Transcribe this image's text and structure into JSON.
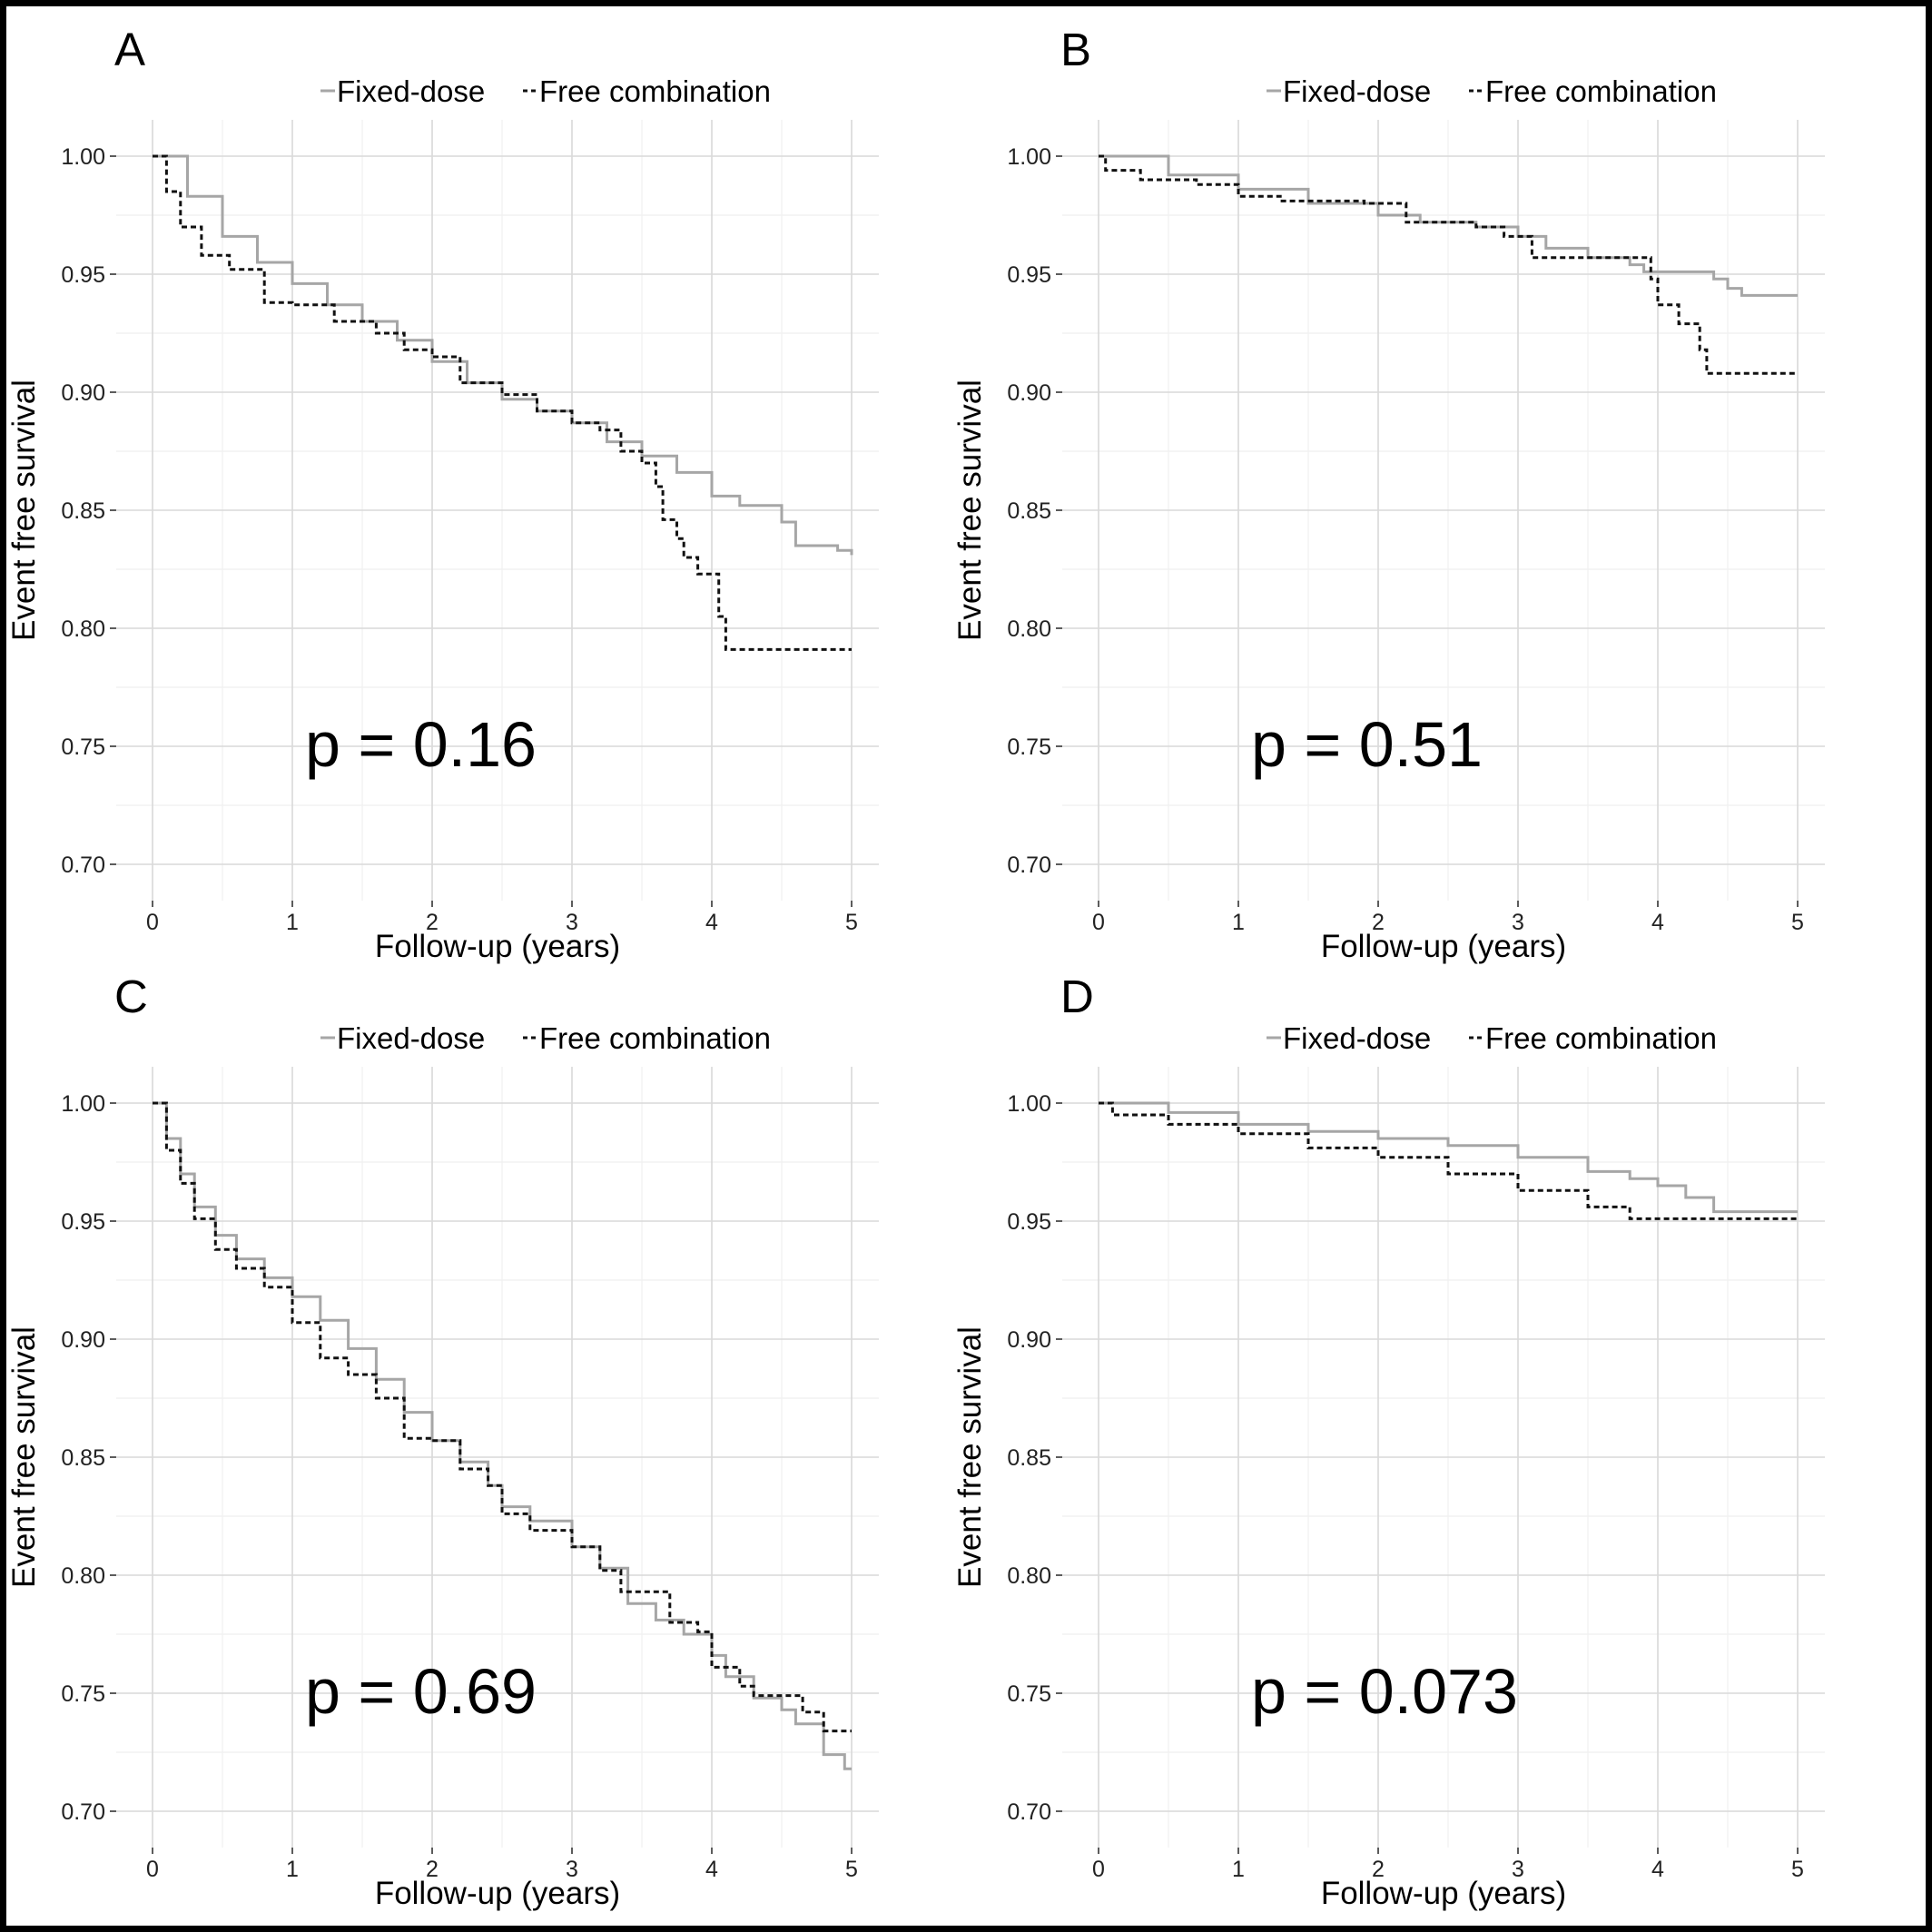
{
  "figure": {
    "colors": {
      "fixed_dose": "#a6a6a6",
      "free_combination": "#111111"
    },
    "line_styles": {
      "fixed_dose": "solid",
      "free_combination": "dashed"
    }
  },
  "chart_data": [
    {
      "type": "line",
      "step": true,
      "panel": "A",
      "pvalue": "p = 0.16",
      "xlabel": "Follow-up (years)",
      "ylabel": "Event free survival",
      "xlim": [
        0,
        5
      ],
      "ylim": [
        0.7,
        1.0
      ],
      "xticks": [
        "0",
        "1",
        "2",
        "3",
        "4",
        "5"
      ],
      "yticks": [
        "0.70",
        "0.75",
        "0.80",
        "0.85",
        "0.90",
        "0.95",
        "1.00"
      ],
      "grid": true,
      "legend_position": "top",
      "series": [
        {
          "name": "Fixed-dose",
          "points": [
            [
              0,
              1.0
            ],
            [
              0.25,
              0.983
            ],
            [
              0.5,
              0.966
            ],
            [
              0.75,
              0.955
            ],
            [
              1.0,
              0.946
            ],
            [
              1.25,
              0.937
            ],
            [
              1.5,
              0.93
            ],
            [
              1.75,
              0.922
            ],
            [
              2.0,
              0.913
            ],
            [
              2.25,
              0.904
            ],
            [
              2.5,
              0.897
            ],
            [
              2.75,
              0.892
            ],
            [
              3.0,
              0.887
            ],
            [
              3.25,
              0.879
            ],
            [
              3.5,
              0.873
            ],
            [
              3.75,
              0.866
            ],
            [
              4.0,
              0.856
            ],
            [
              4.2,
              0.852
            ],
            [
              4.5,
              0.845
            ],
            [
              4.6,
              0.835
            ],
            [
              4.9,
              0.833
            ],
            [
              5.0,
              0.831
            ]
          ]
        },
        {
          "name": "Free combination",
          "points": [
            [
              0,
              1.0
            ],
            [
              0.1,
              0.985
            ],
            [
              0.2,
              0.97
            ],
            [
              0.35,
              0.958
            ],
            [
              0.55,
              0.952
            ],
            [
              0.8,
              0.938
            ],
            [
              1.0,
              0.937
            ],
            [
              1.3,
              0.93
            ],
            [
              1.6,
              0.925
            ],
            [
              1.8,
              0.918
            ],
            [
              2.0,
              0.915
            ],
            [
              2.2,
              0.904
            ],
            [
              2.5,
              0.899
            ],
            [
              2.75,
              0.892
            ],
            [
              3.0,
              0.887
            ],
            [
              3.2,
              0.884
            ],
            [
              3.35,
              0.875
            ],
            [
              3.5,
              0.87
            ],
            [
              3.6,
              0.86
            ],
            [
              3.65,
              0.846
            ],
            [
              3.75,
              0.838
            ],
            [
              3.8,
              0.83
            ],
            [
              3.9,
              0.823
            ],
            [
              4.05,
              0.805
            ],
            [
              4.1,
              0.791
            ],
            [
              5.0,
              0.791
            ]
          ]
        }
      ]
    },
    {
      "type": "line",
      "step": true,
      "panel": "B",
      "pvalue": "p = 0.51",
      "xlabel": "Follow-up (years)",
      "ylabel": "Event free survival",
      "xlim": [
        0,
        5
      ],
      "ylim": [
        0.7,
        1.0
      ],
      "xticks": [
        "0",
        "1",
        "2",
        "3",
        "4",
        "5"
      ],
      "yticks": [
        "0.70",
        "0.75",
        "0.80",
        "0.85",
        "0.90",
        "0.95",
        "1.00"
      ],
      "grid": true,
      "legend_position": "top",
      "series": [
        {
          "name": "Fixed-dose",
          "points": [
            [
              0,
              1.0
            ],
            [
              0.2,
              1.0
            ],
            [
              0.5,
              0.992
            ],
            [
              1.0,
              0.986
            ],
            [
              1.5,
              0.98
            ],
            [
              2.0,
              0.975
            ],
            [
              2.3,
              0.972
            ],
            [
              2.7,
              0.97
            ],
            [
              3.0,
              0.966
            ],
            [
              3.2,
              0.961
            ],
            [
              3.5,
              0.957
            ],
            [
              3.8,
              0.954
            ],
            [
              3.9,
              0.951
            ],
            [
              4.3,
              0.951
            ],
            [
              4.4,
              0.948
            ],
            [
              4.5,
              0.944
            ],
            [
              4.6,
              0.941
            ],
            [
              5.0,
              0.941
            ]
          ]
        },
        {
          "name": "Free combination",
          "points": [
            [
              0,
              1.0
            ],
            [
              0.05,
              0.994
            ],
            [
              0.3,
              0.99
            ],
            [
              0.7,
              0.988
            ],
            [
              1.0,
              0.983
            ],
            [
              1.3,
              0.981
            ],
            [
              1.8,
              0.981
            ],
            [
              1.9,
              0.98
            ],
            [
              2.2,
              0.972
            ],
            [
              2.7,
              0.97
            ],
            [
              2.9,
              0.966
            ],
            [
              3.1,
              0.966
            ],
            [
              3.1,
              0.957
            ],
            [
              3.7,
              0.957
            ],
            [
              3.9,
              0.957
            ],
            [
              3.95,
              0.948
            ],
            [
              4.0,
              0.937
            ],
            [
              4.15,
              0.929
            ],
            [
              4.3,
              0.918
            ],
            [
              4.35,
              0.908
            ],
            [
              5.0,
              0.908
            ]
          ]
        }
      ]
    },
    {
      "type": "line",
      "step": true,
      "panel": "C",
      "pvalue": "p = 0.69",
      "xlabel": "Follow-up (years)",
      "ylabel": "Event free survival",
      "xlim": [
        0,
        5
      ],
      "ylim": [
        0.7,
        1.0
      ],
      "xticks": [
        "0",
        "1",
        "2",
        "3",
        "4",
        "5"
      ],
      "yticks": [
        "0.70",
        "0.75",
        "0.80",
        "0.85",
        "0.90",
        "0.95",
        "1.00"
      ],
      "grid": true,
      "legend_position": "top",
      "series": [
        {
          "name": "Fixed-dose",
          "points": [
            [
              0,
              1.0
            ],
            [
              0.1,
              0.985
            ],
            [
              0.2,
              0.97
            ],
            [
              0.3,
              0.956
            ],
            [
              0.45,
              0.944
            ],
            [
              0.6,
              0.934
            ],
            [
              0.8,
              0.926
            ],
            [
              1.0,
              0.918
            ],
            [
              1.2,
              0.908
            ],
            [
              1.4,
              0.896
            ],
            [
              1.6,
              0.883
            ],
            [
              1.8,
              0.869
            ],
            [
              2.0,
              0.857
            ],
            [
              2.2,
              0.848
            ],
            [
              2.4,
              0.838
            ],
            [
              2.5,
              0.829
            ],
            [
              2.7,
              0.823
            ],
            [
              3.0,
              0.812
            ],
            [
              3.2,
              0.803
            ],
            [
              3.4,
              0.788
            ],
            [
              3.6,
              0.781
            ],
            [
              3.8,
              0.775
            ],
            [
              4.0,
              0.766
            ],
            [
              4.1,
              0.757
            ],
            [
              4.3,
              0.748
            ],
            [
              4.5,
              0.743
            ],
            [
              4.6,
              0.737
            ],
            [
              4.8,
              0.724
            ],
            [
              4.95,
              0.718
            ],
            [
              5.0,
              0.718
            ]
          ]
        },
        {
          "name": "Free combination",
          "points": [
            [
              0,
              1.0
            ],
            [
              0.1,
              0.98
            ],
            [
              0.2,
              0.966
            ],
            [
              0.3,
              0.951
            ],
            [
              0.45,
              0.938
            ],
            [
              0.6,
              0.93
            ],
            [
              0.8,
              0.922
            ],
            [
              1.0,
              0.907
            ],
            [
              1.2,
              0.892
            ],
            [
              1.4,
              0.885
            ],
            [
              1.6,
              0.875
            ],
            [
              1.8,
              0.858
            ],
            [
              2.0,
              0.857
            ],
            [
              2.2,
              0.845
            ],
            [
              2.4,
              0.838
            ],
            [
              2.5,
              0.826
            ],
            [
              2.7,
              0.819
            ],
            [
              3.0,
              0.812
            ],
            [
              3.2,
              0.802
            ],
            [
              3.35,
              0.793
            ],
            [
              3.65,
              0.793
            ],
            [
              3.7,
              0.78
            ],
            [
              3.9,
              0.776
            ],
            [
              4.0,
              0.761
            ],
            [
              4.2,
              0.753
            ],
            [
              4.3,
              0.749
            ],
            [
              4.6,
              0.749
            ],
            [
              4.65,
              0.742
            ],
            [
              4.8,
              0.734
            ],
            [
              5.0,
              0.734
            ]
          ]
        }
      ]
    },
    {
      "type": "line",
      "step": true,
      "panel": "D",
      "pvalue": "p = 0.073",
      "xlabel": "Follow-up (years)",
      "ylabel": "Event free survival",
      "xlim": [
        0,
        5
      ],
      "ylim": [
        0.7,
        1.0
      ],
      "xticks": [
        "0",
        "1",
        "2",
        "3",
        "4",
        "5"
      ],
      "yticks": [
        "0.70",
        "0.75",
        "0.80",
        "0.85",
        "0.90",
        "0.95",
        "1.00"
      ],
      "grid": true,
      "legend_position": "top",
      "series": [
        {
          "name": "Fixed-dose",
          "points": [
            [
              0,
              1.0
            ],
            [
              0.5,
              0.996
            ],
            [
              1.0,
              0.991
            ],
            [
              1.5,
              0.988
            ],
            [
              2.0,
              0.985
            ],
            [
              2.5,
              0.982
            ],
            [
              3.0,
              0.977
            ],
            [
              3.5,
              0.971
            ],
            [
              3.8,
              0.968
            ],
            [
              4.0,
              0.965
            ],
            [
              4.2,
              0.96
            ],
            [
              4.4,
              0.954
            ],
            [
              5.0,
              0.954
            ]
          ]
        },
        {
          "name": "Free combination",
          "points": [
            [
              0,
              1.0
            ],
            [
              0.1,
              0.995
            ],
            [
              0.5,
              0.991
            ],
            [
              1.0,
              0.987
            ],
            [
              1.5,
              0.981
            ],
            [
              2.0,
              0.977
            ],
            [
              2.5,
              0.97
            ],
            [
              3.0,
              0.963
            ],
            [
              3.5,
              0.956
            ],
            [
              3.8,
              0.951
            ],
            [
              5.0,
              0.951
            ]
          ]
        }
      ]
    }
  ]
}
